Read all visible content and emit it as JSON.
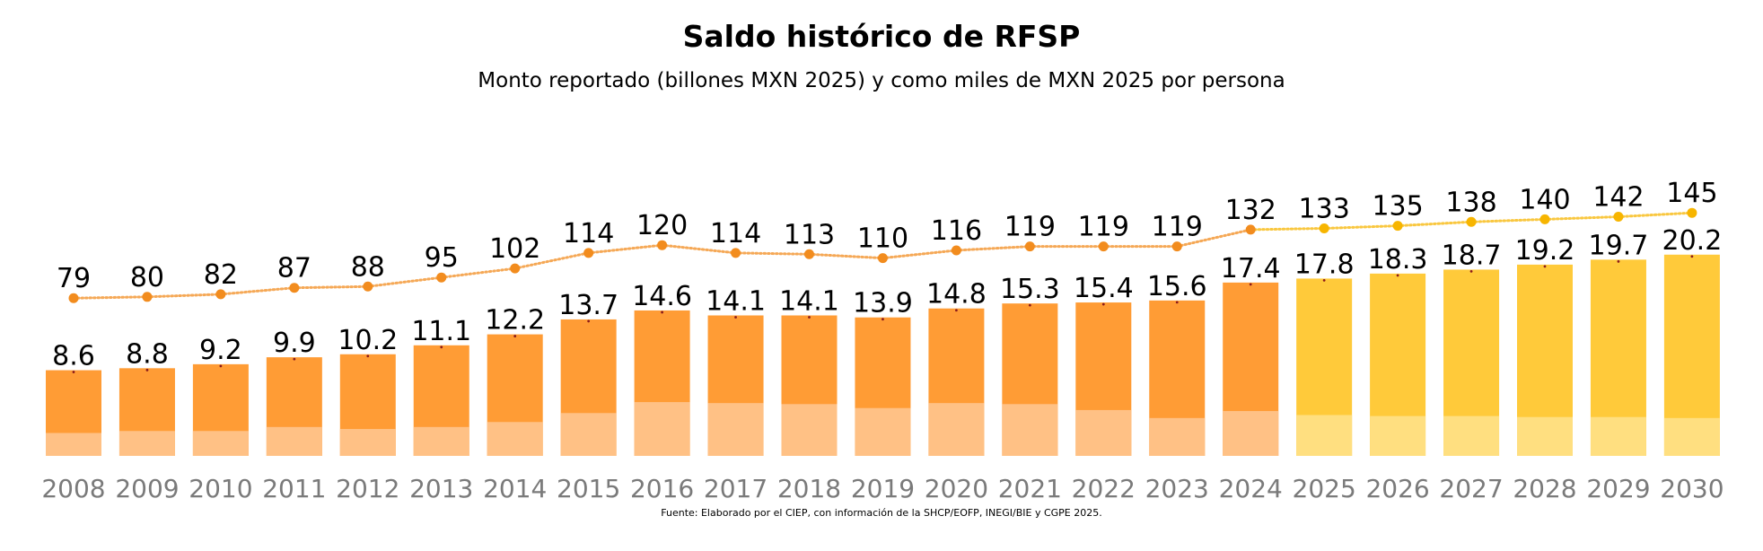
{
  "chart_data": {
    "type": "bar",
    "title": "Saldo histórico de RFSP",
    "subtitle": "Monto reportado (billones MXN 2025) y como miles de MXN 2025 por persona",
    "source": "Fuente: Elaborado por el CIEP, con información de la SHCP/EOFP, INEGI/BIE y CGPE 2025.",
    "categories": [
      "2008",
      "2009",
      "2010",
      "2011",
      "2012",
      "2013",
      "2014",
      "2015",
      "2016",
      "2017",
      "2018",
      "2019",
      "2020",
      "2021",
      "2022",
      "2023",
      "2024",
      "2025",
      "2026",
      "2027",
      "2028",
      "2029",
      "2030"
    ],
    "series": [
      {
        "values": [
          8.6,
          8.8,
          9.2,
          9.9,
          10.2,
          11.1,
          12.2,
          13.7,
          14.6,
          14.1,
          14.1,
          13.9,
          14.8,
          15.3,
          15.4,
          15.6,
          17.4,
          17.8,
          18.3,
          18.7,
          19.2,
          19.7,
          20.2
        ]
      },
      {
        "values": [
          2.3,
          2.5,
          2.5,
          2.9,
          2.7,
          2.9,
          3.4,
          4.3,
          5.4,
          5.3,
          5.2,
          4.8,
          5.3,
          5.2,
          4.6,
          3.8,
          4.5,
          4.1,
          4.0,
          4.0,
          3.9,
          3.9,
          3.8
        ]
      },
      {
        "values": [
          79,
          80,
          82,
          87,
          88,
          95,
          102,
          114,
          120,
          114,
          113,
          110,
          116,
          119,
          119,
          119,
          132,
          133,
          135,
          138,
          140,
          142,
          145
        ]
      }
    ],
    "projected_from": "2025",
    "colors": {
      "bar_historic": "#FF9C35",
      "bar_historic_lower": "#FFC185",
      "bar_projected": "#FFCA3A",
      "bar_projected_lower": "#FFDF80",
      "line_historic": "#F28C1E",
      "line_projected": "#F7B500"
    },
    "ylim_amount": [
      0,
      40
    ],
    "ylim_per_person": [
      0,
      260
    ]
  }
}
